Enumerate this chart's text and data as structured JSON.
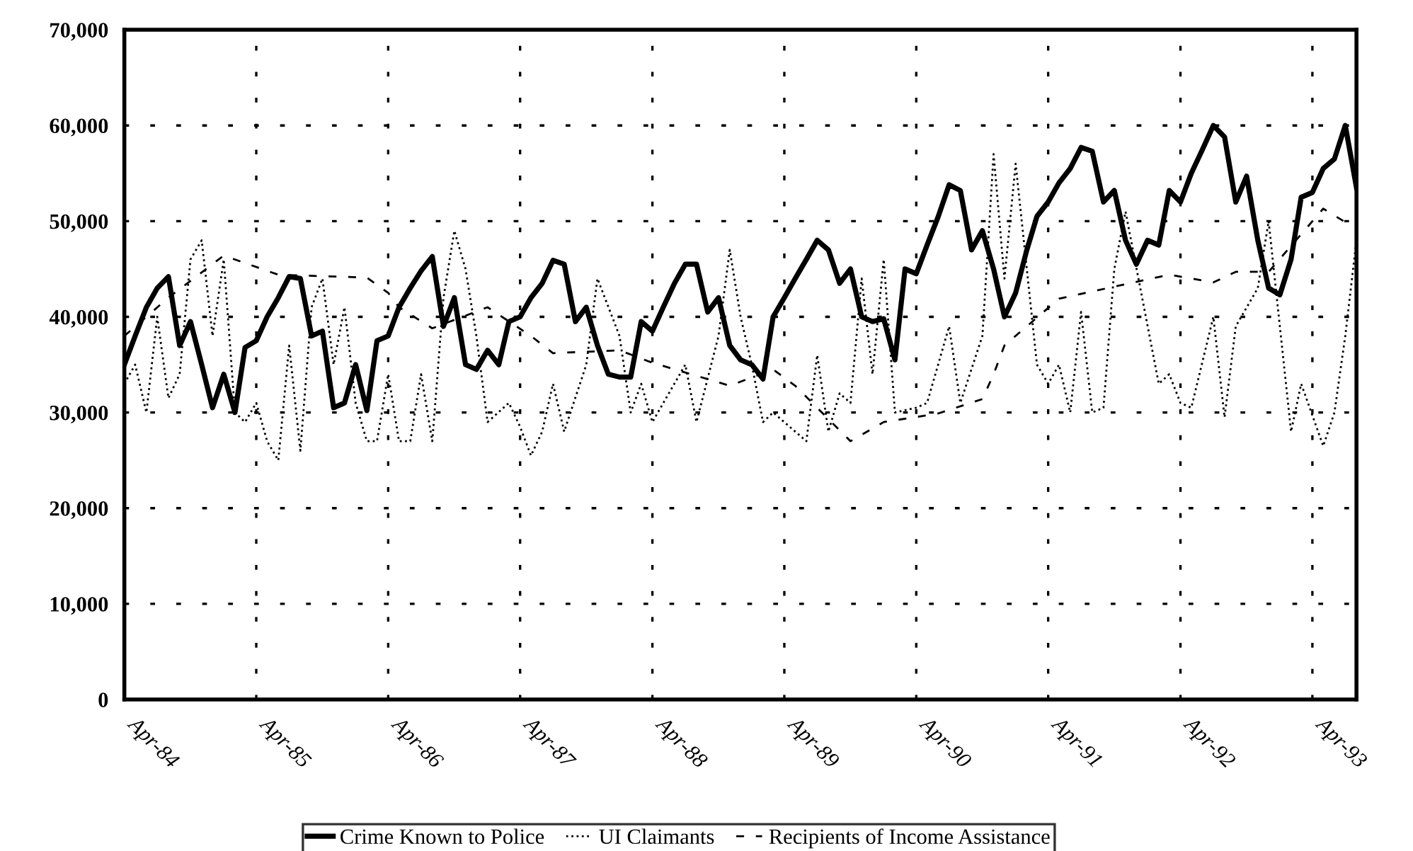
{
  "chart_data": {
    "type": "line",
    "x": [
      "1984-04",
      "1984-05",
      "1984-06",
      "1984-07",
      "1984-08",
      "1984-09",
      "1984-10",
      "1984-11",
      "1984-12",
      "1985-01",
      "1985-02",
      "1985-03",
      "1985-04",
      "1985-05",
      "1985-06",
      "1985-07",
      "1985-08",
      "1985-09",
      "1985-10",
      "1985-11",
      "1985-12",
      "1986-01",
      "1986-02",
      "1986-03",
      "1986-04",
      "1986-05",
      "1986-06",
      "1986-07",
      "1986-08",
      "1986-09",
      "1986-10",
      "1986-11",
      "1986-12",
      "1987-01",
      "1987-02",
      "1987-03",
      "1987-04",
      "1987-05",
      "1987-06",
      "1987-07",
      "1987-08",
      "1987-09",
      "1987-10",
      "1987-11",
      "1987-12",
      "1988-01",
      "1988-02",
      "1988-03",
      "1988-04",
      "1988-05",
      "1988-06",
      "1988-07",
      "1988-08",
      "1988-09",
      "1988-10",
      "1988-11",
      "1988-12",
      "1989-01",
      "1989-02",
      "1989-03",
      "1989-04",
      "1989-05",
      "1989-06",
      "1989-07",
      "1989-08",
      "1989-09",
      "1989-10",
      "1989-11",
      "1989-12",
      "1990-01",
      "1990-02",
      "1990-03",
      "1990-04",
      "1990-05",
      "1990-06",
      "1990-07",
      "1990-08",
      "1990-09",
      "1990-10",
      "1990-11",
      "1990-12",
      "1991-01",
      "1991-02",
      "1991-03",
      "1991-04",
      "1991-05",
      "1991-06",
      "1991-07",
      "1991-08",
      "1991-09",
      "1991-10",
      "1991-11",
      "1991-12",
      "1992-01",
      "1992-02",
      "1992-03",
      "1992-04",
      "1992-05",
      "1992-06",
      "1992-07",
      "1992-08",
      "1992-09",
      "1992-10",
      "1992-11",
      "1992-12",
      "1993-01",
      "1993-02",
      "1993-03",
      "1993-04",
      "1993-05",
      "1993-06",
      "1993-07",
      "1993-08"
    ],
    "series": [
      {
        "name": "Crime Known to Police",
        "color": "#000000",
        "line_style": "solid",
        "values": [
          35000,
          38000,
          41000,
          43000,
          44200,
          37000,
          39500,
          35000,
          30500,
          34000,
          30000,
          36800,
          37500,
          40000,
          42000,
          44200,
          44000,
          38000,
          38500,
          30500,
          31000,
          35000,
          30200,
          37500,
          38000,
          41000,
          43000,
          44800,
          46300,
          39000,
          42000,
          35000,
          34500,
          36500,
          35000,
          39500,
          40000,
          42000,
          43500,
          45900,
          45500,
          39500,
          41000,
          37000,
          34000,
          33700,
          33700,
          39500,
          38500,
          41000,
          43500,
          45500,
          45500,
          40500,
          42000,
          37000,
          35500,
          35000,
          33500,
          40000,
          42000,
          44000,
          46000,
          48000,
          47000,
          43500,
          45000,
          40000,
          39500,
          39800,
          35500,
          45000,
          44500,
          47500,
          50500,
          53800,
          53200,
          47000,
          49000,
          45000,
          40000,
          42500,
          47000,
          50500,
          52000,
          54000,
          55500,
          57700,
          57300,
          52000,
          53200,
          48000,
          45500,
          48000,
          47500,
          53200,
          52000,
          55000,
          57500,
          60000,
          58800,
          52000,
          54700,
          48000,
          43000,
          42300,
          46000,
          52500,
          53000,
          55500,
          56500,
          60000,
          53500
        ]
      },
      {
        "name": "UI Claimants",
        "color": "#000000",
        "line_style": "dotted",
        "x": [
          "1984-04",
          "1984-05",
          "1984-06",
          "1984-07",
          "1984-08",
          "1984-09",
          "1984-10",
          "1984-11",
          "1984-12",
          "1985-01",
          "1985-02",
          "1985-03",
          "1985-04",
          "1985-05",
          "1985-06",
          "1985-07",
          "1985-08",
          "1985-09",
          "1985-10",
          "1985-11",
          "1985-12",
          "1986-01",
          "1986-02",
          "1986-03",
          "1986-04",
          "1986-05",
          "1986-06",
          "1986-07",
          "1986-08",
          "1986-09",
          "1986-10",
          "1986-11",
          "1986-12",
          "1987-01",
          "1987-03",
          "1987-04",
          "1987-05",
          "1987-06",
          "1987-07",
          "1987-08",
          "1987-10",
          "1987-11",
          "1988-01",
          "1988-02",
          "1988-03",
          "1988-04",
          "1988-07",
          "1988-08",
          "1988-10",
          "1988-11",
          "1988-12",
          "1989-01",
          "1989-02",
          "1989-03",
          "1989-06",
          "1989-07",
          "1989-08",
          "1989-09",
          "1989-10",
          "1989-11",
          "1989-12",
          "1990-01",
          "1990-02",
          "1990-04",
          "1990-05",
          "1990-07",
          "1990-08",
          "1990-10",
          "1990-11",
          "1990-12",
          "1991-01",
          "1991-03",
          "1991-04",
          "1991-05",
          "1991-06",
          "1991-07",
          "1991-08",
          "1991-09",
          "1991-10",
          "1991-11",
          "1992-02",
          "1992-03",
          "1992-04",
          "1992-05",
          "1992-07",
          "1992-08",
          "1992-09",
          "1992-11",
          "1992-12",
          "1993-02",
          "1993-03",
          "1993-05",
          "1993-06",
          "1993-07",
          "1993-08"
        ],
        "values": [
          33000,
          35000,
          30000,
          40000,
          31500,
          34000,
          46000,
          48000,
          38000,
          46000,
          30000,
          29000,
          31000,
          27000,
          25000,
          37000,
          26000,
          41000,
          44000,
          35000,
          41000,
          31000,
          27000,
          27000,
          34000,
          27000,
          27000,
          34000,
          27000,
          42000,
          49000,
          45000,
          38000,
          29000,
          31000,
          28500,
          25500,
          28000,
          33000,
          28000,
          35000,
          44000,
          38000,
          30000,
          33000,
          29000,
          35000,
          29000,
          38000,
          47000,
          40000,
          35000,
          29000,
          30000,
          27000,
          36000,
          28000,
          32000,
          31000,
          44000,
          34000,
          46000,
          30000,
          30500,
          31000,
          39000,
          31000,
          38000,
          57000,
          44000,
          56000,
          35000,
          33000,
          35000,
          30000,
          40500,
          30000,
          30500,
          45000,
          51000,
          33000,
          34000,
          31000,
          30500,
          40000,
          29500,
          39000,
          43000,
          50000,
          28000,
          33000,
          26500,
          30000,
          38000,
          48000
        ]
      },
      {
        "name": "Recipients of Income Assistance",
        "color": "#000000",
        "line_style": "dashed",
        "x": [
          "1984-04",
          "1984-08",
          "1985-01",
          "1985-06",
          "1986-02",
          "1986-04",
          "1986-05",
          "1986-08",
          "1987-01",
          "1987-05",
          "1987-07",
          "1988-01",
          "1988-04",
          "1988-11",
          "1989-03",
          "1989-05",
          "1989-10",
          "1990-01",
          "1990-06",
          "1990-10",
          "1990-11",
          "1990-12",
          "1991-05",
          "1992-03",
          "1992-07",
          "1992-09",
          "1992-12",
          "1993-05",
          "1993-07"
        ],
        "values": [
          38000,
          42000,
          46400,
          44400,
          44100,
          42500,
          41000,
          38800,
          41000,
          38000,
          36200,
          36500,
          35200,
          32800,
          34500,
          32800,
          27000,
          29000,
          29900,
          31400,
          34000,
          37000,
          41900,
          44400,
          43600,
          44700,
          44700,
          51300,
          49900
        ]
      }
    ],
    "xlim": [
      "1984-04",
      "1993-08"
    ],
    "xticks": [
      {
        "value": "1984-04",
        "label": "Apr-84"
      },
      {
        "value": "1985-04",
        "label": "Apr-85"
      },
      {
        "value": "1986-04",
        "label": "Apr-86"
      },
      {
        "value": "1987-04",
        "label": "Apr-87"
      },
      {
        "value": "1988-04",
        "label": "Apr-88"
      },
      {
        "value": "1989-04",
        "label": "Apr-89"
      },
      {
        "value": "1990-04",
        "label": "Apr-90"
      },
      {
        "value": "1991-04",
        "label": "Apr-91"
      },
      {
        "value": "1992-04",
        "label": "Apr-92"
      },
      {
        "value": "1993-04",
        "label": "Apr-93"
      }
    ],
    "ylim": [
      0,
      70000
    ],
    "yticks": [
      {
        "value": 0,
        "label": "0"
      },
      {
        "value": 10000,
        "label": "10,000"
      },
      {
        "value": 20000,
        "label": "20,000"
      },
      {
        "value": 30000,
        "label": "30,000"
      },
      {
        "value": 40000,
        "label": "40,000"
      },
      {
        "value": 50000,
        "label": "50,000"
      },
      {
        "value": 60000,
        "label": "60,000"
      },
      {
        "value": 70000,
        "label": "70,000"
      }
    ],
    "grid": true,
    "legend": "bottom",
    "marker": "none"
  }
}
